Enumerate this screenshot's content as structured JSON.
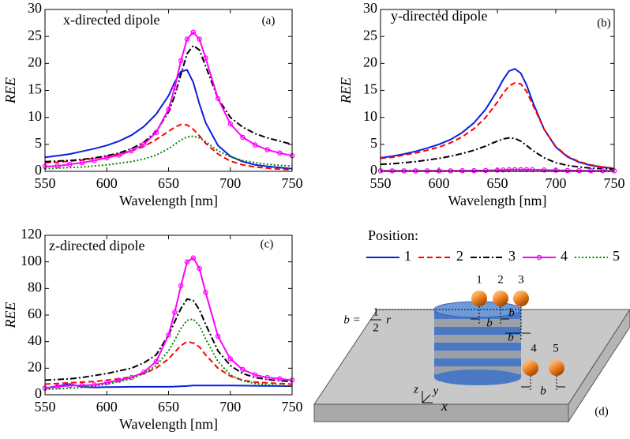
{
  "chart_data": [
    {
      "type": "line",
      "title": "x-directed dipole",
      "panel_label": "(a)",
      "xlabel": "Wavelength [nm]",
      "ylabel": "REE",
      "xlim": [
        550,
        750
      ],
      "xticks": [
        550,
        600,
        650,
        700,
        750
      ],
      "ylim": [
        0,
        30
      ],
      "yticks": [
        0,
        5,
        10,
        15,
        20,
        25,
        30
      ],
      "x": [
        550,
        560,
        570,
        580,
        590,
        600,
        610,
        620,
        630,
        640,
        650,
        655,
        660,
        665,
        670,
        675,
        680,
        690,
        700,
        710,
        720,
        730,
        740,
        750
      ],
      "series": [
        {
          "color": "#0a1fe0",
          "dash": "solid",
          "marker": "none",
          "values": [
            2.6,
            2.9,
            3.2,
            3.7,
            4.2,
            4.8,
            5.6,
            6.7,
            8.3,
            10.6,
            14,
            16.5,
            18.5,
            18.8,
            16.5,
            12.5,
            9,
            4.8,
            2.8,
            1.8,
            1.2,
            0.9,
            0.7,
            0.5
          ]
        },
        {
          "color": "#ff0000",
          "dash": "dashed",
          "marker": "none",
          "values": [
            1.6,
            1.7,
            1.9,
            2.1,
            2.4,
            2.8,
            3.2,
            3.8,
            4.6,
            5.9,
            7.4,
            8.2,
            8.7,
            8.6,
            7.8,
            6.6,
            5.2,
            3.2,
            1.9,
            1.2,
            0.8,
            0.6,
            0.4,
            0.3
          ]
        },
        {
          "color": "#000000",
          "dash": "dashdot",
          "marker": "none",
          "values": [
            1.8,
            1.9,
            2.0,
            2.2,
            2.5,
            2.9,
            3.4,
            4.2,
            5.4,
            7.4,
            11,
            14,
            18,
            21.8,
            23.3,
            22.5,
            19.5,
            13.5,
            10,
            8.2,
            7,
            6.2,
            5.6,
            5
          ]
        },
        {
          "color": "#ff00ff",
          "dash": "solid",
          "marker": "circle",
          "values": [
            0.9,
            1.0,
            1.3,
            1.6,
            2.0,
            2.5,
            3.0,
            3.8,
            5.0,
            7.2,
            11.5,
            15.5,
            20.5,
            24.5,
            25.8,
            24.5,
            21,
            13.5,
            8.8,
            6.3,
            4.9,
            4,
            3.4,
            2.9
          ]
        },
        {
          "color": "#008a00",
          "dash": "dotted",
          "marker": "none",
          "values": [
            0.5,
            0.6,
            0.7,
            0.8,
            1.0,
            1.2,
            1.5,
            1.8,
            2.3,
            3.0,
            4.2,
            5.0,
            5.8,
            6.4,
            6.5,
            6.2,
            5.5,
            3.8,
            2.7,
            2.0,
            1.6,
            1.3,
            1.1,
            1.0
          ]
        }
      ]
    },
    {
      "type": "line",
      "title": "y-directed dipole",
      "panel_label": "(b)",
      "xlabel": "Wavelength [nm]",
      "ylabel": "REE",
      "xlim": [
        550,
        750
      ],
      "xticks": [
        550,
        600,
        650,
        700,
        750
      ],
      "ylim": [
        0,
        30
      ],
      "yticks": [
        0,
        5,
        10,
        15,
        20,
        25,
        30
      ],
      "x": [
        550,
        560,
        570,
        580,
        590,
        600,
        610,
        620,
        630,
        640,
        650,
        655,
        660,
        665,
        670,
        675,
        680,
        690,
        700,
        710,
        720,
        730,
        740,
        750
      ],
      "series": [
        {
          "color": "#0a1fe0",
          "dash": "solid",
          "marker": "none",
          "values": [
            2.5,
            2.8,
            3.2,
            3.7,
            4.3,
            5.0,
            5.9,
            7.2,
            9.0,
            11.5,
            15,
            17,
            18.6,
            19,
            18.2,
            16,
            13,
            7.8,
            4.5,
            2.7,
            1.7,
            1.1,
            0.8,
            0.5
          ]
        },
        {
          "color": "#ff0000",
          "dash": "dashed",
          "marker": "none",
          "values": [
            2.4,
            2.6,
            3.0,
            3.4,
            3.9,
            4.5,
            5.3,
            6.4,
            7.9,
            10,
            12.8,
            14.5,
            15.8,
            16.4,
            16.2,
            14.8,
            12.5,
            7.8,
            4.6,
            2.8,
            1.8,
            1.2,
            0.8,
            0.6
          ]
        },
        {
          "color": "#000000",
          "dash": "dashdot",
          "marker": "none",
          "values": [
            1.3,
            1.4,
            1.6,
            1.8,
            2.1,
            2.4,
            2.8,
            3.3,
            3.9,
            4.7,
            5.6,
            6.0,
            6.2,
            6.1,
            5.6,
            4.8,
            3.9,
            2.5,
            1.6,
            1.1,
            0.8,
            0.6,
            0.5,
            0.4
          ]
        },
        {
          "color": "#ff00ff",
          "dash": "solid",
          "marker": "circle",
          "values": [
            0.1,
            0.1,
            0.1,
            0.1,
            0.1,
            0.1,
            0.1,
            0.12,
            0.14,
            0.17,
            0.22,
            0.26,
            0.3,
            0.32,
            0.33,
            0.32,
            0.3,
            0.25,
            0.2,
            0.16,
            0.13,
            0.12,
            0.11,
            0.1
          ]
        },
        {
          "color": "#008a00",
          "dash": "dotted",
          "marker": "none",
          "values": [
            0.05,
            0.05,
            0.05,
            0.05,
            0.05,
            0.05,
            0.05,
            0.05,
            0.05,
            0.05,
            0.06,
            0.06,
            0.07,
            0.07,
            0.07,
            0.07,
            0.06,
            0.06,
            0.05,
            0.05,
            0.05,
            0.05,
            0.05,
            0.05
          ]
        }
      ]
    },
    {
      "type": "line",
      "title": "z-directed dipole",
      "panel_label": "(c)",
      "xlabel": "Wavelength [nm]",
      "ylabel": "REE",
      "xlim": [
        550,
        750
      ],
      "xticks": [
        550,
        600,
        650,
        700,
        750
      ],
      "ylim": [
        0,
        120
      ],
      "yticks": [
        0,
        20,
        40,
        60,
        80,
        100,
        120
      ],
      "x": [
        550,
        560,
        570,
        580,
        590,
        600,
        610,
        620,
        630,
        640,
        650,
        655,
        660,
        665,
        670,
        675,
        680,
        690,
        700,
        710,
        720,
        730,
        740,
        750
      ],
      "series": [
        {
          "color": "#0a1fe0",
          "dash": "solid",
          "marker": "none",
          "values": [
            5,
            6.5,
            8,
            6,
            5.5,
            5.8,
            5.9,
            6,
            6,
            6,
            6,
            6.2,
            6.4,
            6.6,
            7,
            7,
            7,
            7,
            7,
            6.9,
            6.8,
            6.7,
            6.6,
            6.5
          ]
        },
        {
          "color": "#ff0000",
          "dash": "dashed",
          "marker": "none",
          "values": [
            8,
            8.5,
            9,
            9.5,
            10,
            11,
            12,
            13.5,
            16,
            20,
            27,
            32,
            37,
            40,
            39,
            36,
            30,
            20,
            14,
            11,
            9.5,
            9,
            8.5,
            8
          ]
        },
        {
          "color": "#000000",
          "dash": "dashdot",
          "marker": "none",
          "values": [
            11,
            11.5,
            12,
            13,
            14.5,
            16,
            18,
            20,
            24,
            30,
            45,
            55,
            65,
            72,
            71,
            64,
            53,
            33,
            22,
            16,
            13,
            11.5,
            10.5,
            10
          ]
        },
        {
          "color": "#ff00ff",
          "dash": "solid",
          "marker": "circle",
          "values": [
            5,
            6,
            7,
            7,
            7.5,
            9,
            11,
            13,
            17,
            25,
            45,
            62,
            82,
            100,
            103,
            95,
            77,
            44,
            27,
            19,
            15,
            13,
            12,
            11
          ]
        },
        {
          "color": "#008a00",
          "dash": "dotted",
          "marker": "none",
          "values": [
            4,
            4.5,
            5,
            5.5,
            6.5,
            8,
            10,
            12,
            16,
            22,
            33,
            41,
            50,
            56,
            57,
            52,
            42,
            25,
            15,
            10.5,
            8.5,
            7.5,
            7,
            6.5
          ]
        }
      ]
    }
  ],
  "legend": {
    "title": "Position:",
    "entries": [
      {
        "name": "1",
        "color": "#0a1fe0",
        "dash": "solid",
        "marker": "none"
      },
      {
        "name": "2",
        "color": "#ff0000",
        "dash": "dashed",
        "marker": "none"
      },
      {
        "name": "3",
        "color": "#000000",
        "dash": "dashdot",
        "marker": "none"
      },
      {
        "name": "4",
        "color": "#ff00ff",
        "dash": "solid",
        "marker": "circle"
      },
      {
        "name": "5",
        "color": "#008a00",
        "dash": "dotted",
        "marker": "none"
      }
    ]
  },
  "diagram": {
    "panel_label": "(d)",
    "positions": [
      "1",
      "2",
      "3",
      "4",
      "5"
    ],
    "spacing_labels": [
      "b",
      "b",
      "b",
      "b"
    ],
    "formula": {
      "lhs": "b =",
      "numerator": "1",
      "denominator": "2",
      "rhs": "r"
    },
    "axes": [
      "z",
      "y",
      "x"
    ]
  }
}
